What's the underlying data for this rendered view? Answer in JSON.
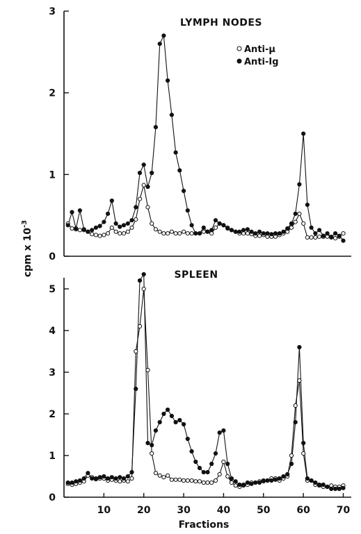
{
  "chart_data": [
    {
      "type": "line",
      "title": "LYMPH NODES",
      "xlabel": "",
      "ylabel": "cpm x 10^-3",
      "xlim": [
        0,
        72
      ],
      "ylim": [
        0,
        3
      ],
      "yticks": [
        "0",
        "1",
        "2",
        "3"
      ],
      "legend": {
        "position": "top-right",
        "entries": [
          "Anti-μ",
          "Anti-Ig"
        ]
      },
      "series": [
        {
          "name": "Anti-μ",
          "marker": "open-circle",
          "x": [
            1,
            2,
            3,
            4,
            5,
            6,
            7,
            8,
            9,
            10,
            11,
            12,
            13,
            14,
            15,
            16,
            17,
            18,
            19,
            20,
            21,
            22,
            23,
            24,
            25,
            26,
            27,
            28,
            29,
            30,
            31,
            32,
            33,
            34,
            35,
            36,
            37,
            38,
            39,
            40,
            41,
            42,
            43,
            44,
            45,
            46,
            47,
            48,
            49,
            50,
            51,
            52,
            53,
            54,
            55,
            56,
            57,
            58,
            59,
            60,
            61,
            62,
            63,
            64,
            65,
            66,
            67,
            68,
            69,
            70
          ],
          "y": [
            0.4,
            0.34,
            0.33,
            0.32,
            0.32,
            0.3,
            0.27,
            0.26,
            0.25,
            0.26,
            0.28,
            0.35,
            0.3,
            0.28,
            0.28,
            0.3,
            0.35,
            0.45,
            0.7,
            0.87,
            0.6,
            0.4,
            0.33,
            0.3,
            0.28,
            0.28,
            0.3,
            0.28,
            0.28,
            0.3,
            0.28,
            0.28,
            0.28,
            0.28,
            0.3,
            0.3,
            0.28,
            0.35,
            0.4,
            0.38,
            0.35,
            0.32,
            0.3,
            0.28,
            0.28,
            0.28,
            0.27,
            0.25,
            0.25,
            0.26,
            0.24,
            0.24,
            0.24,
            0.26,
            0.28,
            0.3,
            0.35,
            0.42,
            0.52,
            0.4,
            0.23,
            0.23,
            0.23,
            0.24,
            0.24,
            0.24,
            0.24,
            0.22,
            0.24,
            0.28
          ]
        },
        {
          "name": "Anti-Ig",
          "marker": "filled-circle",
          "x": [
            1,
            2,
            3,
            4,
            5,
            6,
            7,
            8,
            9,
            10,
            11,
            12,
            13,
            14,
            15,
            16,
            17,
            18,
            19,
            20,
            21,
            22,
            23,
            24,
            25,
            26,
            27,
            28,
            29,
            30,
            31,
            32,
            33,
            34,
            35,
            36,
            37,
            38,
            39,
            40,
            41,
            42,
            43,
            44,
            45,
            46,
            47,
            48,
            49,
            50,
            51,
            52,
            53,
            54,
            55,
            56,
            57,
            58,
            59,
            60,
            61,
            62,
            63,
            64,
            65,
            66,
            67,
            68,
            69,
            70
          ],
          "y": [
            0.38,
            0.54,
            0.34,
            0.56,
            0.33,
            0.3,
            0.32,
            0.35,
            0.37,
            0.42,
            0.52,
            0.68,
            0.4,
            0.36,
            0.38,
            0.4,
            0.44,
            0.6,
            1.02,
            1.12,
            0.85,
            1.02,
            1.58,
            2.6,
            2.7,
            2.15,
            1.73,
            1.27,
            1.05,
            0.8,
            0.56,
            0.38,
            0.28,
            0.28,
            0.35,
            0.3,
            0.32,
            0.44,
            0.4,
            0.38,
            0.34,
            0.32,
            0.3,
            0.3,
            0.32,
            0.33,
            0.3,
            0.28,
            0.3,
            0.28,
            0.28,
            0.27,
            0.28,
            0.28,
            0.3,
            0.34,
            0.4,
            0.52,
            0.88,
            1.5,
            0.63,
            0.35,
            0.28,
            0.32,
            0.25,
            0.28,
            0.23,
            0.28,
            0.25,
            0.19
          ]
        }
      ]
    },
    {
      "type": "line",
      "title": "SPLEEN",
      "xlabel": "Fractions",
      "ylabel": "cpm x 10^-3",
      "xlim": [
        0,
        72
      ],
      "ylim": [
        0,
        5.5
      ],
      "xticks": [
        "10",
        "20",
        "30",
        "40",
        "50",
        "60",
        "70"
      ],
      "yticks": [
        "0",
        "1",
        "2",
        "3",
        "4",
        "5"
      ],
      "series": [
        {
          "name": "Anti-μ",
          "marker": "open-circle",
          "x": [
            1,
            2,
            3,
            4,
            5,
            6,
            7,
            8,
            9,
            10,
            11,
            12,
            13,
            14,
            15,
            16,
            17,
            18,
            19,
            20,
            21,
            22,
            23,
            24,
            25,
            26,
            27,
            28,
            29,
            30,
            31,
            32,
            33,
            34,
            35,
            36,
            37,
            38,
            39,
            40,
            41,
            42,
            43,
            44,
            45,
            46,
            47,
            48,
            49,
            50,
            51,
            52,
            53,
            54,
            55,
            56,
            57,
            58,
            59,
            60,
            61,
            62,
            63,
            64,
            65,
            66,
            67,
            68,
            69,
            70
          ],
          "y": [
            0.32,
            0.3,
            0.32,
            0.35,
            0.38,
            0.52,
            0.48,
            0.43,
            0.45,
            0.45,
            0.4,
            0.42,
            0.4,
            0.38,
            0.4,
            0.38,
            0.45,
            3.5,
            4.1,
            5.0,
            3.05,
            1.05,
            0.58,
            0.52,
            0.48,
            0.52,
            0.42,
            0.42,
            0.42,
            0.4,
            0.4,
            0.4,
            0.38,
            0.38,
            0.35,
            0.35,
            0.35,
            0.4,
            0.55,
            0.85,
            0.5,
            0.35,
            0.28,
            0.25,
            0.28,
            0.3,
            0.35,
            0.35,
            0.38,
            0.38,
            0.4,
            0.45,
            0.45,
            0.4,
            0.45,
            0.5,
            1.0,
            2.2,
            2.8,
            1.05,
            0.4,
            0.4,
            0.3,
            0.28,
            0.25,
            0.25,
            0.28,
            0.25,
            0.25,
            0.28
          ]
        },
        {
          "name": "Anti-Ig",
          "marker": "filled-circle",
          "x": [
            1,
            2,
            3,
            4,
            5,
            6,
            7,
            8,
            9,
            10,
            11,
            12,
            13,
            14,
            15,
            16,
            17,
            18,
            19,
            20,
            21,
            22,
            23,
            24,
            25,
            26,
            27,
            28,
            29,
            30,
            31,
            32,
            33,
            34,
            35,
            36,
            37,
            38,
            39,
            40,
            41,
            42,
            43,
            44,
            45,
            46,
            47,
            48,
            49,
            50,
            51,
            52,
            53,
            54,
            55,
            56,
            57,
            58,
            59,
            60,
            61,
            62,
            63,
            64,
            65,
            66,
            67,
            68,
            69,
            70
          ],
          "y": [
            0.35,
            0.35,
            0.38,
            0.4,
            0.45,
            0.58,
            0.45,
            0.45,
            0.48,
            0.5,
            0.45,
            0.48,
            0.45,
            0.48,
            0.45,
            0.5,
            0.6,
            2.6,
            5.2,
            5.35,
            1.3,
            1.25,
            1.6,
            1.8,
            2.0,
            2.1,
            1.95,
            1.8,
            1.85,
            1.75,
            1.4,
            1.1,
            0.85,
            0.7,
            0.6,
            0.6,
            0.8,
            1.05,
            1.55,
            1.6,
            0.8,
            0.45,
            0.38,
            0.3,
            0.3,
            0.35,
            0.32,
            0.35,
            0.35,
            0.4,
            0.4,
            0.4,
            0.42,
            0.45,
            0.5,
            0.55,
            0.8,
            1.8,
            3.6,
            1.3,
            0.45,
            0.4,
            0.35,
            0.3,
            0.3,
            0.25,
            0.2,
            0.2,
            0.2,
            0.22
          ]
        }
      ]
    }
  ]
}
